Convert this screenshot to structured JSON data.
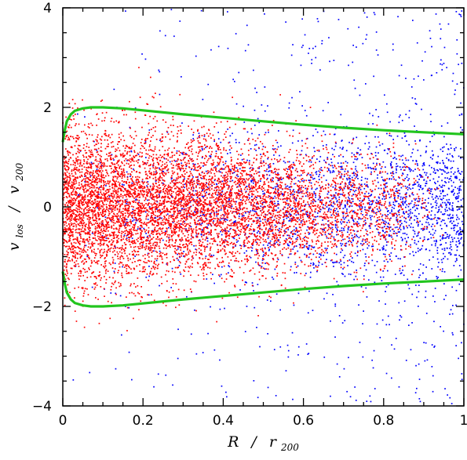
{
  "chart_data": {
    "type": "scatter",
    "title": "",
    "xlabel": {
      "main": "R",
      "sep": "/",
      "denom": "r",
      "sub": "200"
    },
    "ylabel": {
      "main": "v",
      "main_sub": "los",
      "sep": "/",
      "denom": "v",
      "denom_sub": "200"
    },
    "xlim": [
      0,
      1
    ],
    "ylim": [
      -4,
      4
    ],
    "x_ticks": [
      0,
      0.2,
      0.4,
      0.6,
      0.8,
      1
    ],
    "y_ticks": [
      -4,
      -2,
      0,
      2,
      4
    ],
    "x_tick_labels": [
      "0",
      "0.2",
      "0.4",
      "0.6",
      "0.8",
      "1"
    ],
    "y_tick_labels": [
      "−4",
      "−2",
      "0",
      "2",
      "4"
    ],
    "grid": false,
    "legend": "none",
    "series": [
      {
        "kind": "scatter",
        "color": "#0000ff",
        "count": 2600,
        "x_range": [
          0,
          1
        ],
        "distribution": "x density increasing with R; core v_los roughly Gaussian with sigma ~0.7, plus a uniform interloper component spanning the full y range"
      },
      {
        "kind": "scatter",
        "color": "#ff0000",
        "count": 7000,
        "x_range": [
          0,
          0.95
        ],
        "distribution": "x density decreasing with R; v_los Gaussian with sigma ~0.8 near R=0 narrowing to ~0.5 at R=0.9"
      },
      {
        "kind": "line",
        "color": "#22c51e",
        "x": [
          0.0,
          0.005,
          0.01,
          0.02,
          0.03,
          0.05,
          0.07,
          0.1,
          0.15,
          0.2,
          0.3,
          0.4,
          0.5,
          0.6,
          0.7,
          0.8,
          0.9,
          1.0
        ],
        "upper": [
          1.3,
          1.55,
          1.72,
          1.86,
          1.93,
          1.98,
          2.0,
          2.0,
          1.98,
          1.94,
          1.86,
          1.79,
          1.72,
          1.65,
          1.59,
          1.54,
          1.5,
          1.46
        ],
        "lower_is_mirror": true
      }
    ]
  }
}
